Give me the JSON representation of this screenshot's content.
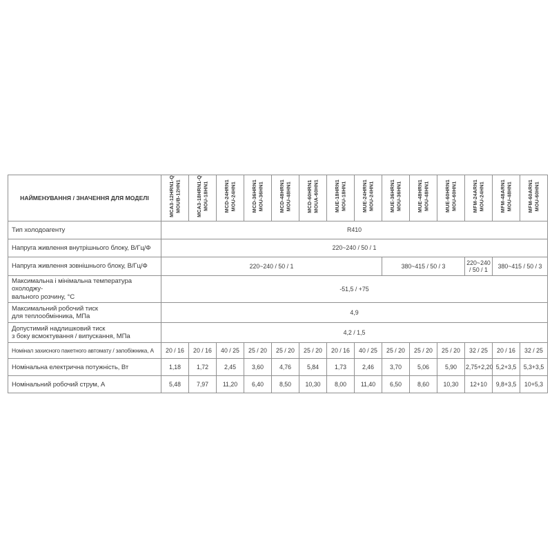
{
  "table": {
    "corner_header": "НАЙМЕНУВАННЯ / ЗНАЧЕННЯ ДЛЯ МОДЕЛІ",
    "models": [
      {
        "indoor": "MCA3-12HRN1-Q",
        "outdoor": "MOUB-12HN1"
      },
      {
        "indoor": "MCA3-18HRN1-Q",
        "outdoor": "MOU-18HN1"
      },
      {
        "indoor": "MCD-24HRN1",
        "outdoor": "MOU-24HN1"
      },
      {
        "indoor": "MCD-36HRN1",
        "outdoor": "MOU-36HN1"
      },
      {
        "indoor": "MCD-48HRN1",
        "outdoor": "MOU-48HN1"
      },
      {
        "indoor": "MCD-60HRN1",
        "outdoor": "MOUA-60HN1"
      },
      {
        "indoor": "MUE-18HRN1",
        "outdoor": "MOU-18HN1"
      },
      {
        "indoor": "MUE-24HRN1",
        "outdoor": "MOU-24HN1"
      },
      {
        "indoor": "MUE-36HRN1",
        "outdoor": "MOU-36HN1"
      },
      {
        "indoor": "MUE-48HRN1",
        "outdoor": "MOU-48HN1"
      },
      {
        "indoor": "MUE-60HRN1",
        "outdoor": "MOU-60HN1"
      },
      {
        "indoor": "MFM-24ARN1",
        "outdoor": "MOU-24HN1"
      },
      {
        "indoor": "MFM-48ARN1",
        "outdoor": "MOU-48HN1"
      },
      {
        "indoor": "MFM-60ARN1",
        "outdoor": "MOU-60HN1"
      }
    ],
    "rows": [
      {
        "label": "Тип холодоагенту",
        "cells": [
          {
            "span": 14,
            "value": "R410"
          }
        ]
      },
      {
        "label": "Напруга живлення внутрішнього блоку, В/Гц/Ф",
        "cells": [
          {
            "span": 14,
            "value": "220~240 / 50 / 1"
          }
        ]
      },
      {
        "label": "Напруга живлення зовнішнього блоку, В/Гц/Ф",
        "cells": [
          {
            "span": 8,
            "value": "220~240 / 50 / 1"
          },
          {
            "span": 3,
            "value": "380~415 / 50 / 3"
          },
          {
            "span": 1,
            "value": "220~240 / 50 / 1"
          },
          {
            "span": 2,
            "value": "380~415 / 50 / 3"
          }
        ]
      },
      {
        "label": "Максимальна і мінімальна температура охолоджу-\nвального розчину, °С",
        "cells": [
          {
            "span": 14,
            "value": "-51,5 / +75"
          }
        ]
      },
      {
        "label": "Максимальний робочий тиск\nдля теплообмінника, МПа",
        "cells": [
          {
            "span": 14,
            "value": "4,9"
          }
        ]
      },
      {
        "label": "Допустимий надлишковий тиск\nз боку всмоктування / випускання, МПа",
        "cells": [
          {
            "span": 14,
            "value": "4,2 / 1,5"
          }
        ]
      },
      {
        "label": "Номінал захисного пакетного автомату / запобіжника, А",
        "cells": [
          {
            "span": 1,
            "value": "20 / 16"
          },
          {
            "span": 1,
            "value": "20 / 16"
          },
          {
            "span": 1,
            "value": "40 / 25"
          },
          {
            "span": 1,
            "value": "25 / 20"
          },
          {
            "span": 1,
            "value": "25 / 20"
          },
          {
            "span": 1,
            "value": "25 / 20"
          },
          {
            "span": 1,
            "value": "20 / 16"
          },
          {
            "span": 1,
            "value": "40 / 25"
          },
          {
            "span": 1,
            "value": "25 / 20"
          },
          {
            "span": 1,
            "value": "25 / 20"
          },
          {
            "span": 1,
            "value": "25 / 20"
          },
          {
            "span": 1,
            "value": "32 / 25"
          },
          {
            "span": 1,
            "value": "20 / 16"
          },
          {
            "span": 1,
            "value": "32 / 25"
          }
        ]
      },
      {
        "label": "Номінальна електрична потужність, Вт",
        "cells": [
          {
            "span": 1,
            "value": "1,18"
          },
          {
            "span": 1,
            "value": "1,72"
          },
          {
            "span": 1,
            "value": "2,45"
          },
          {
            "span": 1,
            "value": "3,60"
          },
          {
            "span": 1,
            "value": "4,76"
          },
          {
            "span": 1,
            "value": "5,84"
          },
          {
            "span": 1,
            "value": "1,73"
          },
          {
            "span": 1,
            "value": "2,46"
          },
          {
            "span": 1,
            "value": "3,70"
          },
          {
            "span": 1,
            "value": "5,06"
          },
          {
            "span": 1,
            "value": "5,90"
          },
          {
            "span": 1,
            "value": "2,75+2,20"
          },
          {
            "span": 1,
            "value": "5,2+3,5"
          },
          {
            "span": 1,
            "value": "5,3+3,5"
          }
        ]
      },
      {
        "label": "Номінальний робочий струм, А",
        "cells": [
          {
            "span": 1,
            "value": "5,48"
          },
          {
            "span": 1,
            "value": "7,97"
          },
          {
            "span": 1,
            "value": "11,20"
          },
          {
            "span": 1,
            "value": "6,40"
          },
          {
            "span": 1,
            "value": "8,50"
          },
          {
            "span": 1,
            "value": "10,30"
          },
          {
            "span": 1,
            "value": "8,00"
          },
          {
            "span": 1,
            "value": "11,40"
          },
          {
            "span": 1,
            "value": "6,50"
          },
          {
            "span": 1,
            "value": "8,60"
          },
          {
            "span": 1,
            "value": "10,30"
          },
          {
            "span": 1,
            "value": "12+10"
          },
          {
            "span": 1,
            "value": "9,8+3,5"
          },
          {
            "span": 1,
            "value": "10+5,3"
          }
        ]
      }
    ]
  },
  "colors": {
    "border": "#8f8f8f",
    "outer_border": "#6e6e6e",
    "text": "#3a3a3a"
  }
}
